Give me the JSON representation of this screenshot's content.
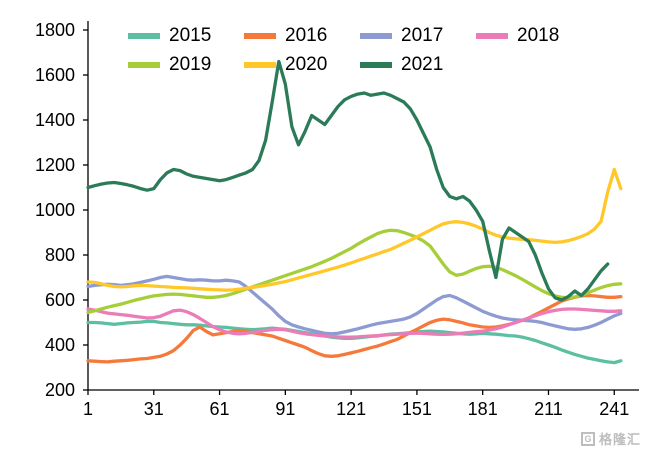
{
  "watermark": {
    "icon_letter": "G",
    "text": "格隆汇"
  },
  "chart_data": {
    "type": "line",
    "title": "",
    "xlabel": "",
    "ylabel": "",
    "grid": false,
    "legend_position": "top",
    "xlim": [
      1,
      250
    ],
    "ylim": [
      200,
      1800
    ],
    "x_ticks": [
      1,
      31,
      61,
      91,
      121,
      151,
      181,
      211,
      241
    ],
    "y_ticks": [
      200,
      400,
      600,
      800,
      1000,
      1200,
      1400,
      1600,
      1800
    ],
    "x_start": 1,
    "x_step": 3,
    "legend_rows": [
      [
        0,
        1,
        2,
        3
      ],
      [
        4,
        5,
        6
      ]
    ],
    "series": [
      {
        "name": "2015",
        "color": "#5CBFA2",
        "values": [
          500,
          500,
          498,
          495,
          492,
          495,
          498,
          500,
          502,
          505,
          505,
          500,
          498,
          495,
          492,
          490,
          490,
          488,
          485,
          482,
          480,
          478,
          475,
          472,
          470,
          468,
          470,
          472,
          475,
          472,
          470,
          465,
          460,
          455,
          450,
          445,
          440,
          435,
          432,
          430,
          430,
          432,
          435,
          438,
          440,
          445,
          448,
          450,
          452,
          455,
          458,
          460,
          462,
          460,
          458,
          455,
          452,
          450,
          448,
          450,
          452,
          450,
          448,
          445,
          442,
          440,
          435,
          428,
          420,
          410,
          400,
          390,
          378,
          368,
          358,
          350,
          342,
          336,
          330,
          325,
          322,
          330
        ]
      },
      {
        "name": "2016",
        "color": "#F5793B",
        "values": [
          330,
          328,
          326,
          325,
          328,
          330,
          332,
          335,
          338,
          340,
          345,
          350,
          360,
          375,
          400,
          430,
          465,
          480,
          460,
          445,
          450,
          455,
          460,
          465,
          460,
          455,
          450,
          445,
          440,
          430,
          420,
          410,
          400,
          390,
          375,
          362,
          352,
          350,
          352,
          358,
          365,
          372,
          380,
          388,
          395,
          405,
          415,
          425,
          440,
          455,
          470,
          485,
          500,
          510,
          515,
          512,
          505,
          498,
          490,
          485,
          480,
          478,
          480,
          485,
          492,
          500,
          510,
          520,
          535,
          550,
          565,
          580,
          595,
          605,
          612,
          618,
          620,
          618,
          615,
          612,
          612,
          615
        ]
      },
      {
        "name": "2017",
        "color": "#8E9BD3",
        "values": [
          660,
          665,
          668,
          670,
          668,
          665,
          668,
          672,
          678,
          685,
          692,
          700,
          705,
          700,
          695,
          690,
          688,
          690,
          688,
          685,
          685,
          688,
          685,
          680,
          660,
          635,
          610,
          585,
          560,
          530,
          505,
          490,
          480,
          472,
          465,
          458,
          452,
          450,
          452,
          458,
          465,
          472,
          480,
          488,
          495,
          500,
          505,
          510,
          515,
          525,
          540,
          560,
          580,
          600,
          615,
          620,
          610,
          595,
          580,
          565,
          550,
          538,
          528,
          520,
          515,
          512,
          510,
          508,
          505,
          500,
          492,
          485,
          478,
          472,
          470,
          472,
          478,
          488,
          500,
          515,
          530,
          540
        ]
      },
      {
        "name": "2018",
        "color": "#EC7CB8",
        "values": [
          560,
          555,
          548,
          542,
          538,
          535,
          532,
          528,
          524,
          520,
          522,
          528,
          540,
          552,
          555,
          548,
          535,
          518,
          500,
          482,
          468,
          458,
          452,
          450,
          452,
          456,
          460,
          465,
          468,
          470,
          468,
          462,
          455,
          450,
          446,
          443,
          440,
          438,
          436,
          435,
          435,
          436,
          438,
          440,
          442,
          444,
          446,
          448,
          450,
          452,
          453,
          452,
          450,
          448,
          447,
          448,
          450,
          453,
          456,
          459,
          462,
          466,
          472,
          480,
          490,
          500,
          510,
          520,
          530,
          540,
          548,
          554,
          558,
          560,
          560,
          558,
          556,
          554,
          552,
          550,
          550,
          552
        ]
      },
      {
        "name": "2019",
        "color": "#A6CE39",
        "values": [
          545,
          552,
          560,
          568,
          575,
          582,
          590,
          598,
          605,
          612,
          618,
          622,
          625,
          626,
          625,
          622,
          618,
          615,
          612,
          612,
          615,
          620,
          628,
          638,
          648,
          658,
          668,
          678,
          688,
          698,
          708,
          718,
          728,
          738,
          748,
          760,
          772,
          785,
          800,
          815,
          830,
          848,
          865,
          880,
          895,
          905,
          910,
          908,
          900,
          890,
          878,
          862,
          840,
          800,
          760,
          725,
          710,
          715,
          728,
          740,
          748,
          750,
          745,
          735,
          722,
          708,
          692,
          675,
          658,
          642,
          628,
          618,
          612,
          610,
          614,
          622,
          632,
          644,
          655,
          664,
          670,
          672
        ]
      },
      {
        "name": "2020",
        "color": "#FFC828",
        "values": [
          680,
          678,
          672,
          665,
          660,
          658,
          660,
          663,
          665,
          664,
          662,
          660,
          658,
          656,
          655,
          654,
          652,
          650,
          648,
          646,
          645,
          644,
          645,
          648,
          652,
          656,
          660,
          665,
          670,
          676,
          682,
          690,
          698,
          706,
          714,
          722,
          730,
          738,
          746,
          755,
          765,
          775,
          785,
          795,
          805,
          815,
          825,
          838,
          852,
          866,
          880,
          895,
          910,
          925,
          938,
          945,
          948,
          945,
          938,
          928,
          915,
          900,
          888,
          880,
          875,
          872,
          870,
          868,
          865,
          862,
          858,
          856,
          858,
          864,
          872,
          882,
          895,
          915,
          950,
          1080,
          1180,
          1095
        ]
      },
      {
        "name": "2021",
        "color": "#2B7B59",
        "values": [
          1100,
          1108,
          1115,
          1120,
          1122,
          1118,
          1112,
          1105,
          1095,
          1088,
          1095,
          1135,
          1165,
          1180,
          1175,
          1160,
          1150,
          1145,
          1140,
          1135,
          1130,
          1135,
          1145,
          1155,
          1165,
          1180,
          1220,
          1310,
          1480,
          1660,
          1560,
          1370,
          1290,
          1350,
          1420,
          1400,
          1380,
          1420,
          1460,
          1490,
          1505,
          1515,
          1520,
          1510,
          1515,
          1520,
          1510,
          1495,
          1480,
          1450,
          1400,
          1340,
          1280,
          1180,
          1100,
          1060,
          1050,
          1060,
          1040,
          1000,
          950,
          820,
          700,
          870,
          920,
          900,
          880,
          860,
          800,
          720,
          650,
          610,
          600,
          615,
          640,
          620,
          650,
          690,
          730,
          760
        ]
      }
    ]
  }
}
